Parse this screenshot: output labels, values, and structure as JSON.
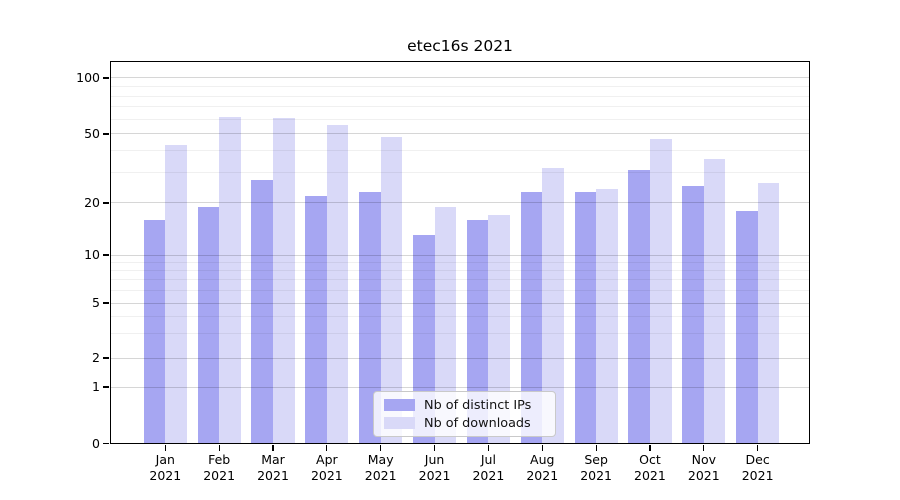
{
  "chart_data": {
    "type": "bar",
    "title": "etec16s 2021",
    "categories": [
      "Jan 2021",
      "Feb 2021",
      "Mar 2021",
      "Apr 2021",
      "May 2021",
      "Jun 2021",
      "Jul 2021",
      "Aug 2021",
      "Sep 2021",
      "Oct 2021",
      "Nov 2021",
      "Dec 2021"
    ],
    "series": [
      {
        "name": "Nb of distinct IPs",
        "color": "#a6a6f2",
        "values": [
          16,
          19,
          27,
          22,
          23,
          13,
          16,
          23,
          23,
          31,
          25,
          18
        ]
      },
      {
        "name": "Nb of downloads",
        "color": "#d9d9f8",
        "values": [
          43,
          62,
          61,
          56,
          48,
          19,
          17,
          32,
          24,
          47,
          36,
          26
        ]
      }
    ],
    "yscale": "quasi-log (log above 1, compressed toward 0)",
    "y_ticks_major": [
      0,
      1,
      2,
      5,
      10,
      20,
      50,
      100
    ],
    "y_ticks_minor": [
      3,
      4,
      6,
      7,
      8,
      9,
      30,
      40,
      60,
      70,
      80,
      90
    ],
    "ylim": [
      0,
      120
    ],
    "grid": true,
    "legend_position": "lower center"
  }
}
